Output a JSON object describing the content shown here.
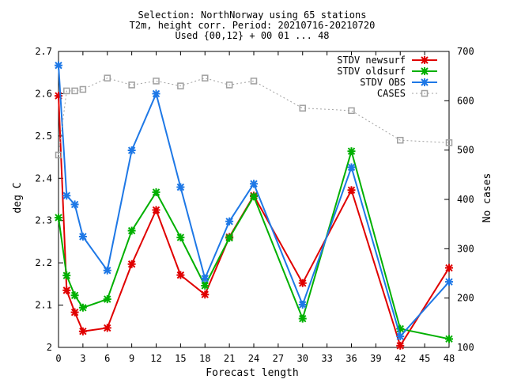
{
  "chart_data": {
    "type": "line",
    "title_lines": [
      "Selection: NorthNorway using    65 stations",
      "T2m, height corr.   Period: 20210716-20210720",
      "Used {00,12} + 00 01 ... 48"
    ],
    "xlabel": "Forecast length",
    "ylabel": "deg C",
    "y2label": "No cases",
    "xlim": [
      0,
      48
    ],
    "ylim": [
      2.0,
      2.7
    ],
    "y2lim": [
      100,
      700
    ],
    "xticks": [
      "0",
      "3",
      "6",
      "9",
      "12",
      "15",
      "18",
      "21",
      "24",
      "27",
      "30",
      "33",
      "36",
      "39",
      "42",
      "45",
      "48"
    ],
    "yticks": [
      "2",
      "2.1",
      "2.2",
      "2.3",
      "2.4",
      "2.5",
      "2.6",
      "2.7"
    ],
    "y2ticks": [
      "100",
      "200",
      "300",
      "400",
      "500",
      "600",
      "700"
    ],
    "legend_position": "top-right",
    "series": [
      {
        "name": "STDV newsurf",
        "color": "#e00000",
        "axis": "y1",
        "marker": "cross",
        "x": [
          0,
          1,
          2,
          3,
          6,
          9,
          12,
          15,
          18,
          21,
          24,
          30,
          36,
          42,
          48
        ],
        "y": [
          2.595,
          2.135,
          2.083,
          2.038,
          2.046,
          2.197,
          2.325,
          2.171,
          2.125,
          2.261,
          2.359,
          2.152,
          2.372,
          2.004,
          2.188
        ]
      },
      {
        "name": "STDV oldsurf",
        "color": "#00b000",
        "axis": "y1",
        "marker": "cross",
        "x": [
          0,
          1,
          2,
          3,
          6,
          9,
          12,
          15,
          18,
          21,
          24,
          30,
          36,
          42,
          48
        ],
        "y": [
          2.307,
          2.17,
          2.123,
          2.094,
          2.114,
          2.276,
          2.367,
          2.26,
          2.146,
          2.259,
          2.357,
          2.068,
          2.464,
          2.044,
          2.02
        ]
      },
      {
        "name": "STDV OBS",
        "color": "#1e78e6",
        "axis": "y1",
        "marker": "cross",
        "x": [
          0,
          1,
          2,
          3,
          6,
          9,
          12,
          15,
          18,
          21,
          24,
          30,
          36,
          42,
          48
        ],
        "y": [
          2.667,
          2.359,
          2.338,
          2.262,
          2.182,
          2.466,
          2.6,
          2.379,
          2.163,
          2.298,
          2.387,
          2.101,
          2.426,
          2.026,
          2.155
        ]
      },
      {
        "name": "CASES",
        "color": "#a0a0a0",
        "axis": "y2",
        "marker": "square",
        "x": [
          0,
          1,
          2,
          3,
          6,
          9,
          12,
          15,
          18,
          21,
          24,
          30,
          36,
          42,
          48
        ],
        "y": [
          490,
          620,
          620,
          623,
          646,
          632,
          640,
          630,
          646,
          632,
          640,
          585,
          580,
          520,
          515
        ]
      }
    ]
  }
}
